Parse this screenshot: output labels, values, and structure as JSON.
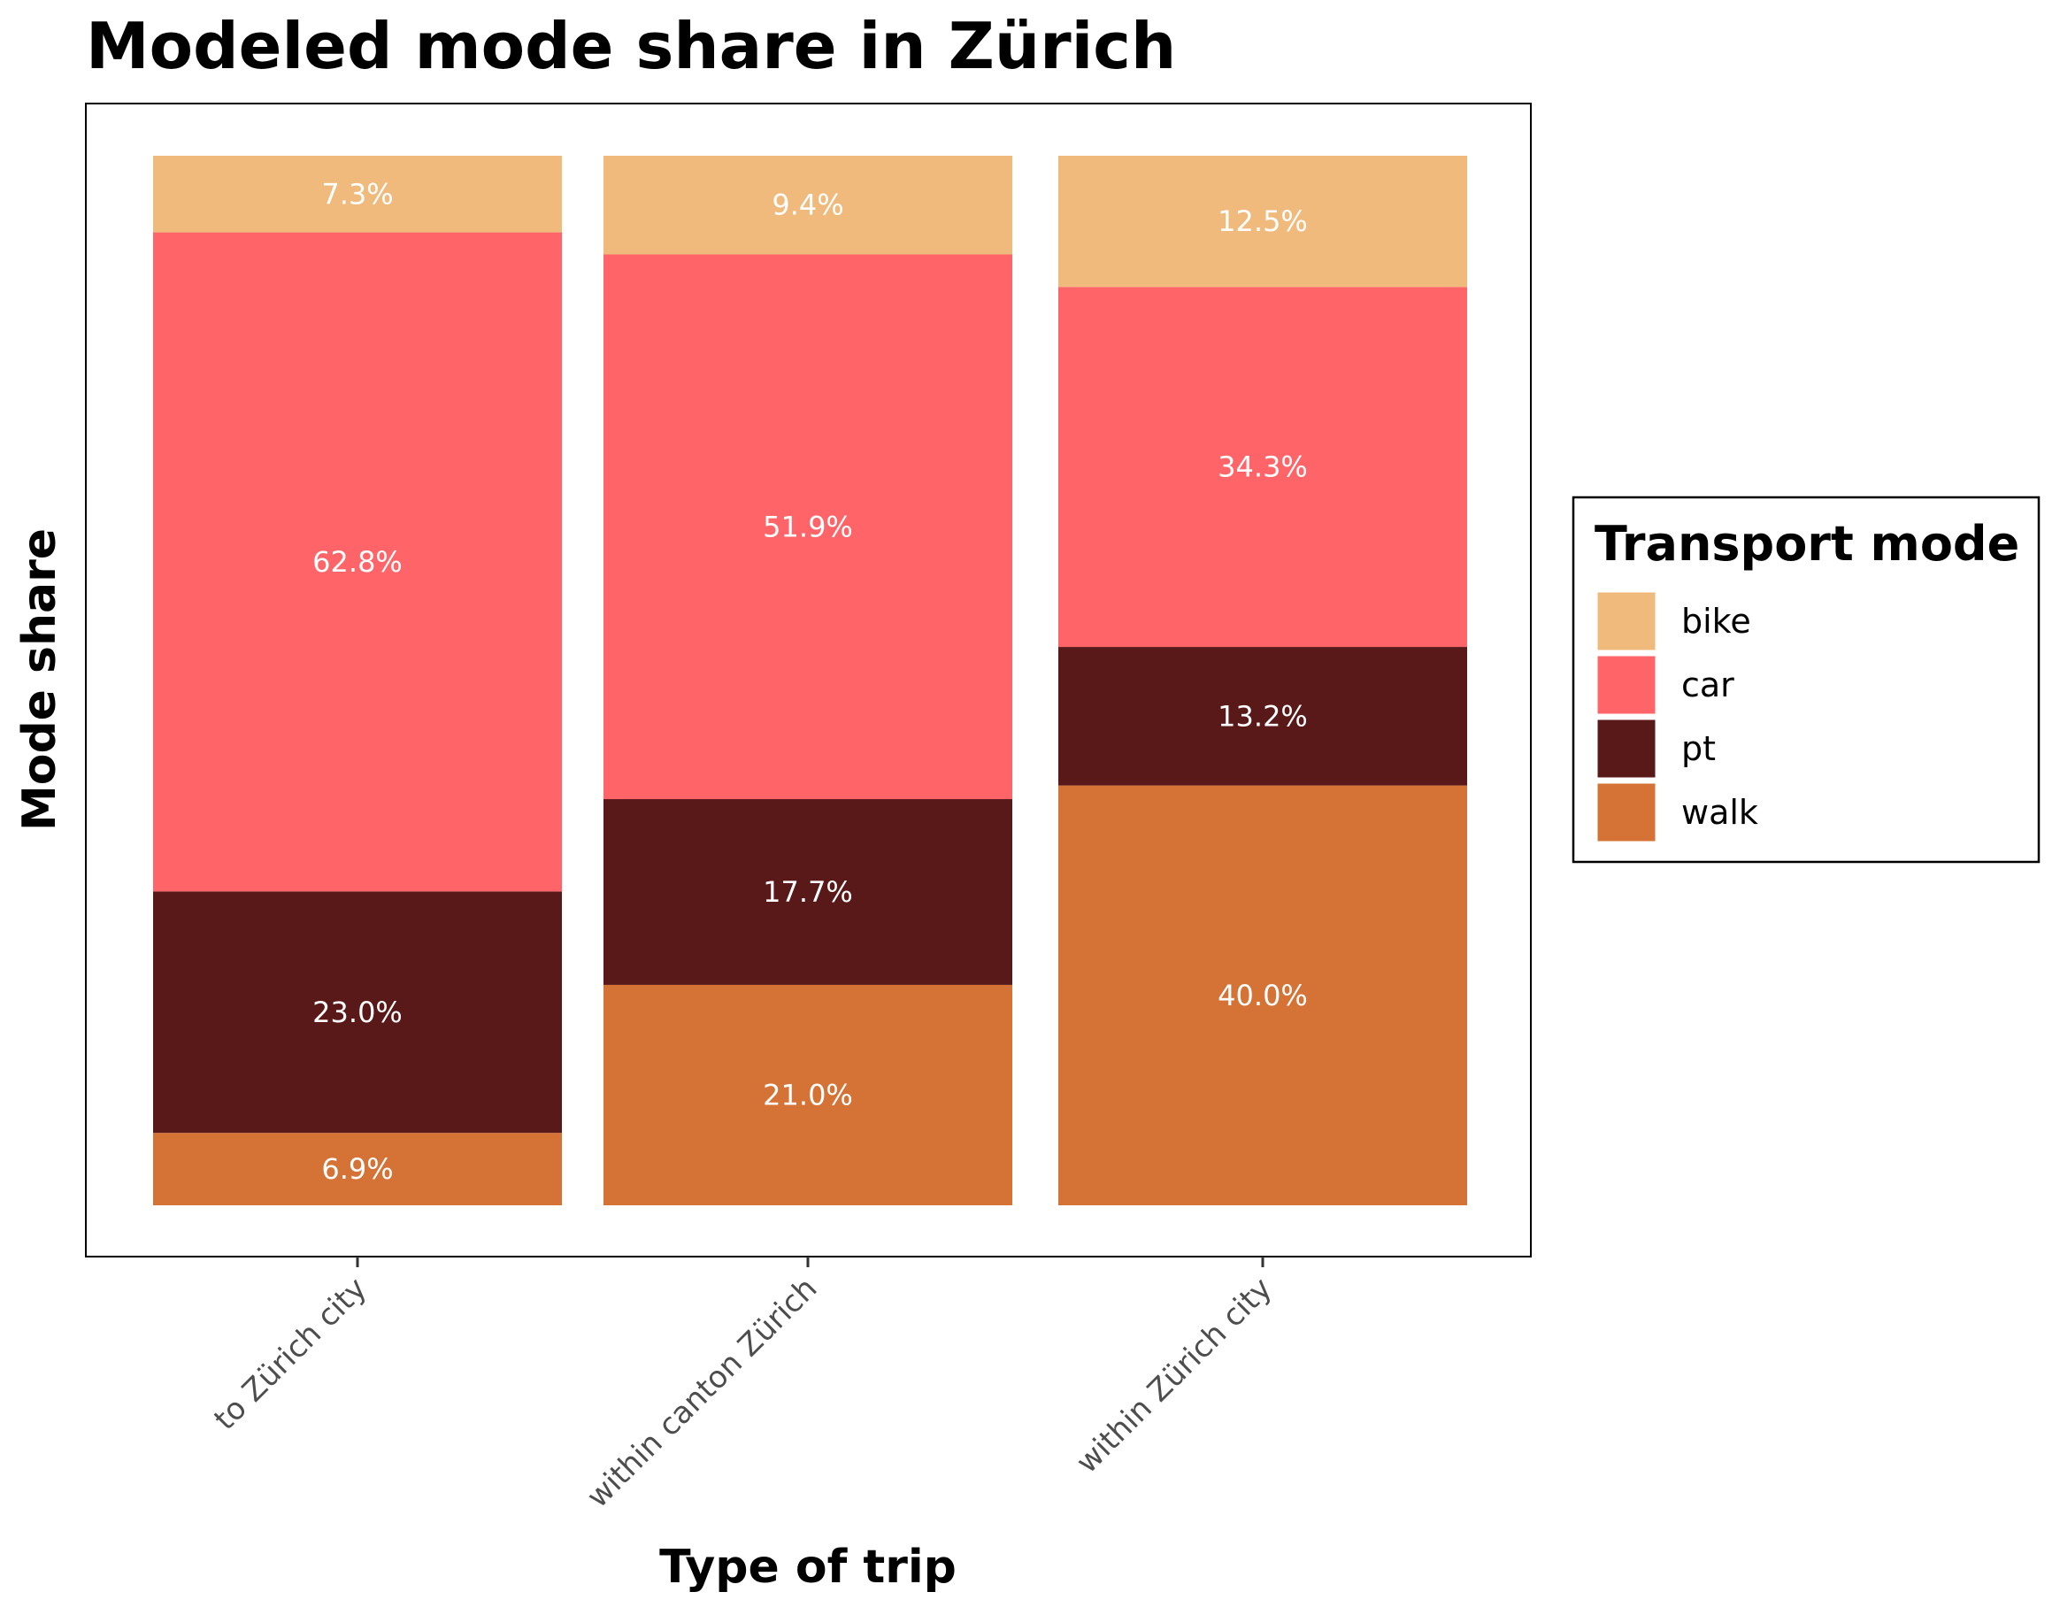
{
  "chart_data": {
    "type": "bar",
    "stacked": true,
    "title": "Modeled mode share in Zürich",
    "xlabel": "Type of trip",
    "ylabel": "Mode share",
    "ylim": [
      0,
      1
    ],
    "categories": [
      "to Zürich city",
      "within canton Zürich",
      "within Zürich city"
    ],
    "series": [
      {
        "name": "walk",
        "color": "#d57236",
        "values": [
          0.069,
          0.21,
          0.4
        ],
        "labels": [
          "6.9%",
          "21.0%",
          "40.0%"
        ]
      },
      {
        "name": "pt",
        "color": "#5a1919",
        "values": [
          0.23,
          0.177,
          0.132
        ],
        "labels": [
          "23.0%",
          "17.7%",
          "13.2%"
        ]
      },
      {
        "name": "car",
        "color": "#ff6468",
        "values": [
          0.628,
          0.519,
          0.343
        ],
        "labels": [
          "62.8%",
          "51.9%",
          "34.3%"
        ]
      },
      {
        "name": "bike",
        "color": "#f0ba7c",
        "values": [
          0.073,
          0.094,
          0.125
        ],
        "labels": [
          "7.3%",
          "9.4%",
          "12.5%"
        ]
      }
    ],
    "legend": {
      "title": "Transport mode",
      "placement": "right",
      "order": [
        "bike",
        "car",
        "pt",
        "walk"
      ]
    },
    "grid": false
  }
}
